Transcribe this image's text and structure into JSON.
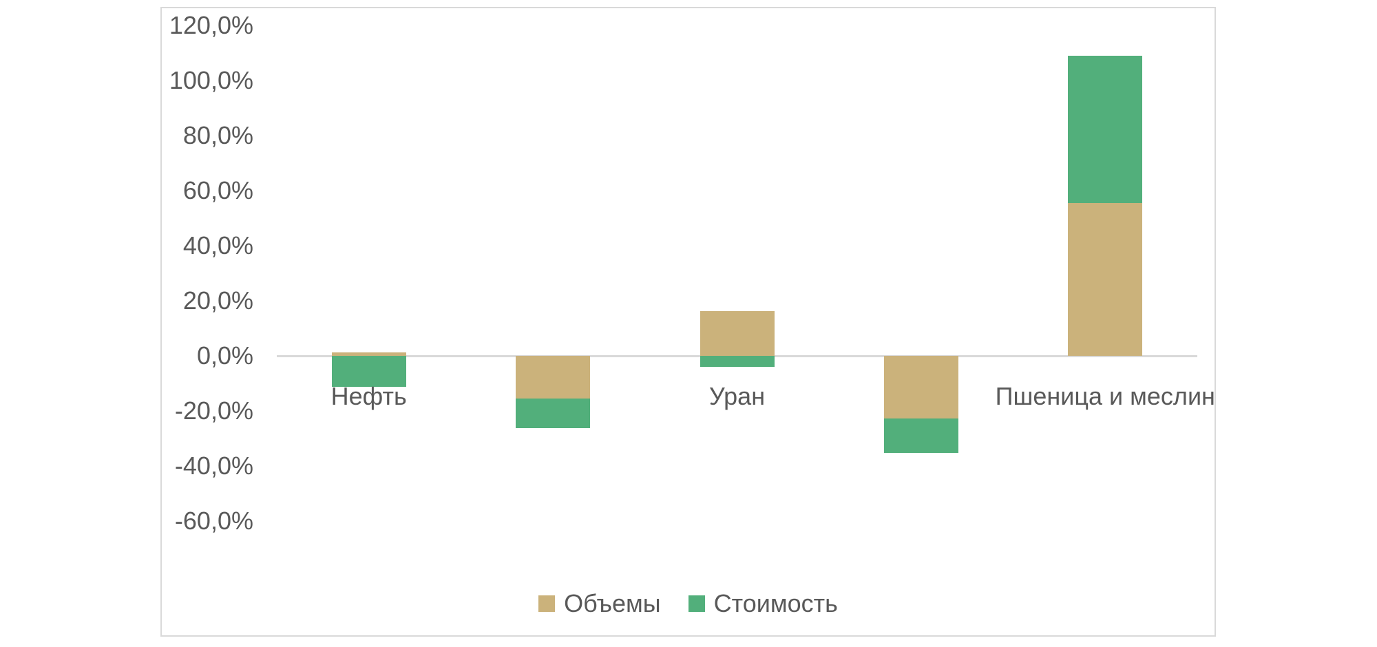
{
  "chart_data": {
    "type": "bar",
    "stacked": true,
    "title": "",
    "xlabel": "",
    "ylabel": "",
    "grid": false,
    "legend_position": "bottom",
    "categories": [
      "Нефть",
      "",
      "Уран",
      "",
      "Пшеница и меслин"
    ],
    "series": [
      {
        "name": "Объемы",
        "color": "#cbb27b",
        "values": [
          1.3,
          -15.5,
          16.3,
          -22.8,
          55.5
        ]
      },
      {
        "name": "Стоимость",
        "color": "#52af7b",
        "values": [
          -11.3,
          -10.8,
          -4.0,
          -12.5,
          53.5
        ]
      }
    ],
    "y_axis": {
      "unit": "percent",
      "ticks": [
        {
          "label": "120,0%",
          "value": 120
        },
        {
          "label": "100,0%",
          "value": 100
        },
        {
          "label": "80,0%",
          "value": 80
        },
        {
          "label": "60,0%",
          "value": 60
        },
        {
          "label": "40,0%",
          "value": 40
        },
        {
          "label": "20,0%",
          "value": 20
        },
        {
          "label": "0,0%",
          "value": 0
        },
        {
          "label": "-20,0%",
          "value": -20
        },
        {
          "label": "-40,0%",
          "value": -40
        },
        {
          "label": "-60,0%",
          "value": -60
        }
      ],
      "ylim": [
        -60,
        120
      ]
    },
    "colors": {
      "axis_line": "#d9d9d9",
      "frame_border": "#d9d9d9",
      "text": "#595959",
      "background": "#ffffff"
    }
  }
}
